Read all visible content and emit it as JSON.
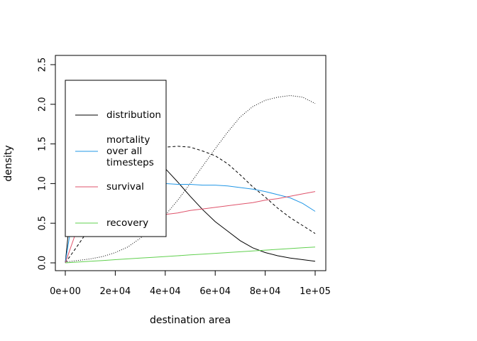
{
  "chart_data": {
    "type": "line",
    "title": "",
    "xlabel": "destination area",
    "ylabel": "density",
    "xlim": [
      0,
      100000
    ],
    "ylim": [
      0,
      2.5
    ],
    "x_ticks": [
      0,
      20000,
      40000,
      60000,
      80000,
      100000
    ],
    "x_tick_labels": [
      "0e+00",
      "2e+04",
      "4e+04",
      "6e+04",
      "8e+04",
      "1e+05"
    ],
    "y_ticks": [
      0,
      0.5,
      1,
      1.5,
      2,
      2.5
    ],
    "y_tick_labels": [
      "0.0",
      "0.5",
      "1.0",
      "1.5",
      "2.0",
      "2.5"
    ],
    "grid": false,
    "legend_position": "left",
    "x": [
      0,
      5000,
      10000,
      15000,
      20000,
      25000,
      30000,
      35000,
      40000,
      45000,
      50000,
      55000,
      60000,
      65000,
      70000,
      75000,
      80000,
      85000,
      90000,
      95000,
      100000
    ],
    "series": [
      {
        "name": "distribution",
        "color": "#000000",
        "dash": "solid",
        "values": [
          0.0,
          1.57,
          1.71,
          1.7,
          1.63,
          1.53,
          1.42,
          1.33,
          1.19,
          1.02,
          0.84,
          0.67,
          0.52,
          0.4,
          0.28,
          0.19,
          0.13,
          0.09,
          0.06,
          0.04,
          0.02
        ]
      },
      {
        "name": "",
        "color": "#000000",
        "dash": "dashed",
        "values": [
          0.0,
          0.22,
          0.45,
          0.7,
          0.95,
          1.17,
          1.32,
          1.41,
          1.46,
          1.47,
          1.46,
          1.41,
          1.35,
          1.25,
          1.11,
          0.96,
          0.83,
          0.69,
          0.57,
          0.47,
          0.37
        ]
      },
      {
        "name": "",
        "color": "#000000",
        "dash": "dotted",
        "values": [
          0.01,
          0.03,
          0.05,
          0.08,
          0.13,
          0.2,
          0.31,
          0.44,
          0.6,
          0.79,
          1.0,
          1.22,
          1.44,
          1.65,
          1.84,
          1.97,
          2.05,
          2.09,
          2.11,
          2.09,
          2.01
        ]
      },
      {
        "name": "mortality over all timesteps",
        "label_lines": [
          "mortality",
          "over all",
          "timesteps"
        ],
        "color": "#2297E6",
        "dash": "solid",
        "values": [
          0.0,
          0.99,
          1.0,
          1.0,
          1.0,
          1.0,
          1.0,
          1.0,
          1.0,
          0.99,
          0.99,
          0.98,
          0.98,
          0.97,
          0.95,
          0.93,
          0.9,
          0.86,
          0.82,
          0.75,
          0.65
        ]
      },
      {
        "name": "survival",
        "color": "#DF536B",
        "dash": "solid",
        "values": [
          0.0,
          0.45,
          0.47,
          0.5,
          0.52,
          0.55,
          0.57,
          0.59,
          0.61,
          0.63,
          0.66,
          0.68,
          0.7,
          0.72,
          0.74,
          0.76,
          0.79,
          0.81,
          0.84,
          0.87,
          0.9
        ]
      },
      {
        "name": "recovery",
        "color": "#61D04F",
        "dash": "solid",
        "values": [
          0.0,
          0.01,
          0.02,
          0.03,
          0.04,
          0.05,
          0.06,
          0.07,
          0.08,
          0.09,
          0.1,
          0.11,
          0.12,
          0.13,
          0.14,
          0.15,
          0.16,
          0.17,
          0.18,
          0.19,
          0.2
        ]
      }
    ],
    "legend": [
      {
        "lines": [
          "distribution"
        ],
        "color": "#000000"
      },
      {
        "lines": [
          "mortality",
          "over all",
          "timesteps"
        ],
        "color": "#2297E6"
      },
      {
        "lines": [
          "survival"
        ],
        "color": "#DF536B"
      },
      {
        "lines": [
          "recovery"
        ],
        "color": "#61D04F"
      }
    ]
  }
}
